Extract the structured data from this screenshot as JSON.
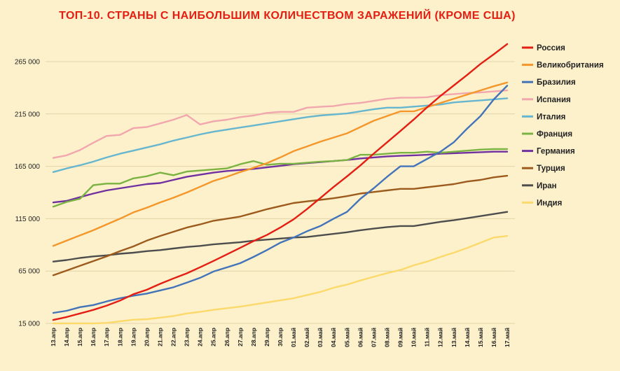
{
  "title": "ТОП-10. СТРАНЫ С НАИБОЛЬШИМ КОЛИЧЕСТВОМ ЗАРАЖЕНИЙ (КРОМЕ США)",
  "chart_data": {
    "type": "line",
    "title": "ТОП-10. СТРАНЫ С НАИБОЛЬШИМ КОЛИЧЕСТВОМ ЗАРАЖЕНИЙ (КРОМЕ США)",
    "xlabel": "",
    "ylabel": "",
    "ylim": [
      15000,
      290000
    ],
    "yticks": [
      15000,
      65000,
      115000,
      165000,
      215000,
      265000
    ],
    "ytick_labels": [
      "15 000",
      "65 000",
      "115 000",
      "165 000",
      "215 000",
      "265 000"
    ],
    "grid": "horizontal",
    "legend_position": "right",
    "categories": [
      "13.апр",
      "14.апр",
      "15.апр",
      "16.апр",
      "17.апр",
      "18.апр",
      "19.апр",
      "20.апр",
      "21.апр",
      "22.апр",
      "23.апр",
      "24.апр",
      "25.апр",
      "26.апр",
      "27.апр",
      "28.апр",
      "29.апр",
      "30.апр",
      "01.май",
      "02.май",
      "03.май",
      "04.май",
      "05.май",
      "06.май",
      "07.май",
      "08.май",
      "09.май",
      "10.май",
      "11.май",
      "12.май",
      "13.май",
      "14.май",
      "15.май",
      "16.май",
      "17.май"
    ],
    "series": [
      {
        "name": "Россия",
        "color": "#e41e13",
        "values": [
          18300,
          21100,
          24500,
          27900,
          32000,
          36800,
          42900,
          47100,
          52800,
          57900,
          62800,
          68600,
          74600,
          80900,
          87100,
          93600,
          99400,
          106500,
          114400,
          124100,
          134700,
          145300,
          155400,
          165900,
          177100,
          187900,
          198700,
          209700,
          221300,
          232200,
          242300,
          252200,
          262800,
          272000,
          281800
        ]
      },
      {
        "name": "Великобритания",
        "color": "#f5962a",
        "values": [
          89000,
          94000,
          99000,
          104000,
          109500,
          115000,
          121000,
          125500,
          130500,
          135000,
          140000,
          145500,
          151000,
          155000,
          159500,
          163500,
          168000,
          173500,
          179500,
          184000,
          188500,
          192500,
          196500,
          202500,
          208500,
          213000,
          217500,
          217500,
          221500,
          225500,
          229500,
          233500,
          237500,
          241500,
          245000
        ]
      },
      {
        "name": "Бразилия",
        "color": "#4373b9",
        "values": [
          25000,
          27000,
          30500,
          32500,
          36000,
          39000,
          41500,
          43500,
          46500,
          49500,
          54000,
          58500,
          64500,
          68500,
          72500,
          78500,
          85000,
          92000,
          97000,
          103000,
          108000,
          115000,
          121500,
          134000,
          144000,
          155000,
          165000,
          165000,
          172000,
          179000,
          188000,
          201000,
          213000,
          229000,
          242000
        ]
      },
      {
        "name": "Испания",
        "color": "#f1a7ad",
        "values": [
          173000,
          175500,
          180500,
          187500,
          194000,
          195000,
          201500,
          202500,
          206000,
          209500,
          214000,
          205000,
          208000,
          209500,
          212000,
          213500,
          216000,
          217000,
          217000,
          221000,
          221800,
          222500,
          224500,
          225500,
          227500,
          229500,
          230500,
          230500,
          231000,
          233000,
          234000,
          235000,
          235500,
          236500,
          237500
        ]
      },
      {
        "name": "Италия",
        "color": "#67b6cf",
        "values": [
          159500,
          163000,
          166000,
          169500,
          173500,
          177000,
          180000,
          183000,
          186000,
          189500,
          192500,
          195500,
          198000,
          200000,
          202000,
          204000,
          206000,
          208000,
          210000,
          212000,
          213500,
          214500,
          215500,
          217500,
          219500,
          221000,
          221000,
          222000,
          223000,
          224000,
          226000,
          227000,
          228000,
          229000,
          230000
        ]
      },
      {
        "name": "Франция",
        "color": "#7ab341",
        "values": [
          126500,
          131000,
          134000,
          147000,
          148500,
          148500,
          153500,
          155500,
          159000,
          156500,
          160000,
          161000,
          162000,
          163000,
          167000,
          170000,
          166500,
          167500,
          167500,
          168500,
          169500,
          170000,
          171000,
          176000,
          176000,
          177000,
          178000,
          178000,
          179000,
          178000,
          179000,
          180000,
          181000,
          181500,
          181500
        ]
      },
      {
        "name": "Германия",
        "color": "#7030a0",
        "values": [
          130500,
          132000,
          135500,
          139000,
          142000,
          144000,
          146000,
          148000,
          149000,
          152000,
          155000,
          157000,
          159000,
          160500,
          161500,
          162500,
          164000,
          165500,
          167000,
          168000,
          169000,
          170000,
          171000,
          172500,
          173500,
          174500,
          175000,
          175500,
          176000,
          177000,
          177500,
          178000,
          178500,
          179000,
          179000
        ]
      },
      {
        "name": "Турция",
        "color": "#9c5b1d",
        "values": [
          61000,
          65500,
          70000,
          74500,
          79000,
          84000,
          88500,
          94000,
          98500,
          102500,
          106500,
          109500,
          113000,
          115000,
          117000,
          120500,
          124000,
          127000,
          130000,
          131500,
          133000,
          134500,
          136500,
          139000,
          140500,
          142000,
          143500,
          143500,
          145000,
          146500,
          148000,
          150500,
          152000,
          154500,
          156000
        ]
      },
      {
        "name": "Иран",
        "color": "#4d4d4d",
        "values": [
          74000,
          75500,
          77500,
          79000,
          80000,
          81500,
          82500,
          84000,
          85000,
          86500,
          88000,
          89000,
          90500,
          91500,
          92500,
          94000,
          95000,
          96000,
          97000,
          97500,
          99000,
          100500,
          102000,
          104000,
          105500,
          107000,
          108000,
          108000,
          110000,
          112000,
          113500,
          115500,
          117500,
          119500,
          121500
        ]
      },
      {
        "name": "Индия",
        "color": "#fbd96a",
        "values": [
          10500,
          12000,
          13500,
          14500,
          15500,
          17000,
          18500,
          19000,
          20500,
          22000,
          24500,
          26000,
          28000,
          29500,
          31000,
          33000,
          35000,
          37000,
          39000,
          42000,
          45000,
          49000,
          52000,
          56000,
          59500,
          63000,
          66000,
          70500,
          74000,
          78500,
          82500,
          87000,
          92000,
          97000,
          98500
        ]
      }
    ]
  }
}
